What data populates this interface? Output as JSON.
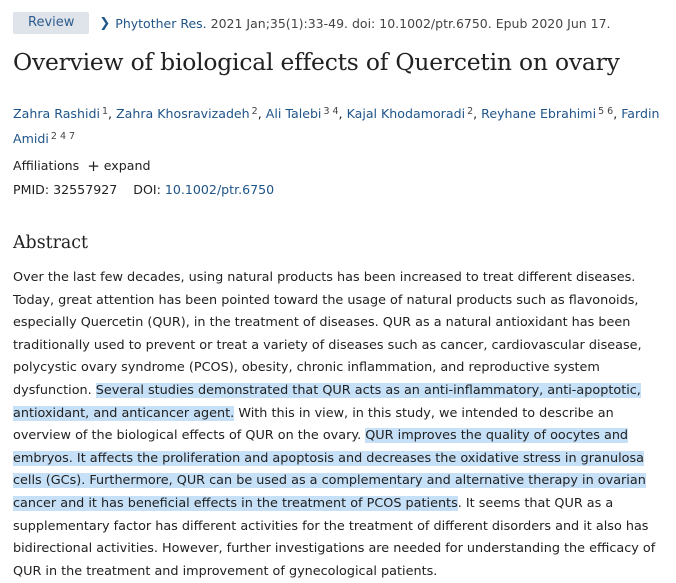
{
  "article": {
    "type_badge": "Review",
    "journal": "Phytother Res.",
    "citation": "2021 Jan;35(1):33-49. doi: 10.1002/ptr.6750. Epub 2020 Jun 17.",
    "title": "Overview of biological effects of Quercetin on ovary",
    "authors": [
      {
        "name": "Zahra Rashidi",
        "aff": "1",
        "sep": ","
      },
      {
        "name": "Zahra Khosravizadeh",
        "aff": "2",
        "sep": ","
      },
      {
        "name": "Ali Talebi",
        "aff": "3 4",
        "sep": ","
      },
      {
        "name": "Kajal Khodamoradi",
        "aff": "2",
        "sep": ","
      },
      {
        "name": "Reyhane Ebrahimi",
        "aff": "5 6",
        "sep": ","
      },
      {
        "name": "Fardin Amidi",
        "aff": "2 4 7",
        "sep": ""
      }
    ],
    "affiliations_label": "Affiliations",
    "expand_label": "expand",
    "pmid_label": "PMID:",
    "pmid": "32557927",
    "doi_label": "DOI:",
    "doi": "10.1002/ptr.6750"
  },
  "abstract": {
    "heading": "Abstract",
    "text_1": "Over the last few decades, using natural products has been increased to treat different diseases. Today, great attention has been pointed toward the usage of natural products such as flavonoids, especially Quercetin (QUR), in the treatment of diseases. QUR as a natural antioxidant has been traditionally used to prevent or treat a variety of diseases such as cancer, cardiovascular disease, polycystic ovary syndrome (PCOS), obesity, chronic inflammation, and reproductive system dysfunction. ",
    "highlight_1": "Several studies demonstrated that QUR acts as an anti-inflammatory, anti-apoptotic, antioxidant, and anticancer agent.",
    "text_2": " With this in view, in this study, we intended to describe an overview of the biological effects of QUR on the ovary. ",
    "highlight_2": "QUR improves the quality of oocytes and embryos. It affects the proliferation and apoptosis and decreases the oxidative stress in granulosa cells (GCs). Furthermore, QUR can be used as a complementary and alternative therapy in ovarian cancer and it has beneficial effects in the treatment of PCOS patients",
    "text_3": ". It seems that QUR as a supplementary factor has different activities for the treatment of different disorders and it also has bidirectional activities. However, further investigations are needed for understanding the efficacy of QUR in the treatment and improvement of gynecological patients."
  },
  "colors": {
    "link": "#20558a",
    "highlight": "#c6e0f7",
    "badge_bg": "#dfe3ea"
  }
}
